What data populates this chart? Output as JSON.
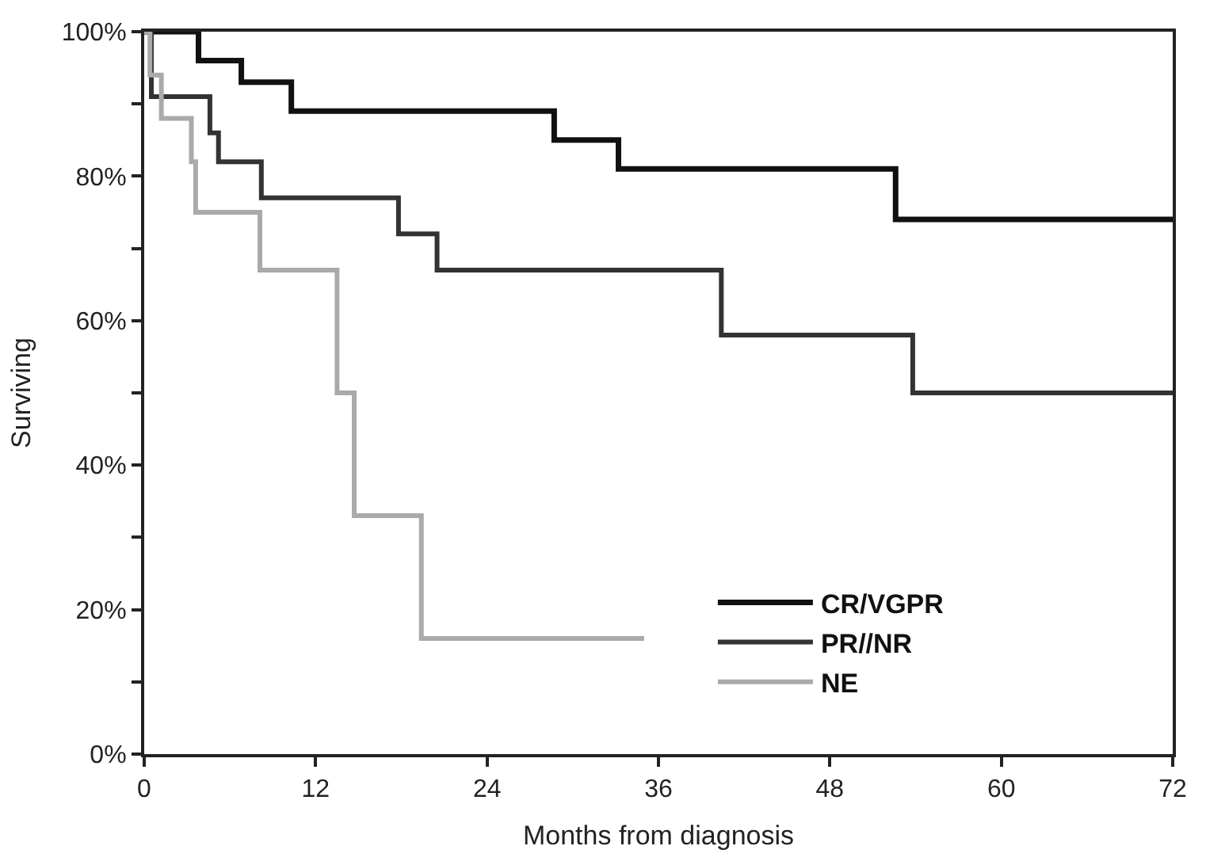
{
  "chart_data": {
    "type": "step",
    "xlabel": "Months from diagnosis",
    "ylabel": "Surviving",
    "xlim": [
      0,
      72
    ],
    "xticks": [
      0,
      12,
      24,
      36,
      48,
      60,
      72
    ],
    "ylim": [
      0,
      100
    ],
    "yticks": [
      {
        "value": 0,
        "label": "0%"
      },
      {
        "value": 10,
        "label": null
      },
      {
        "value": 20,
        "label": "20%"
      },
      {
        "value": 30,
        "label": null
      },
      {
        "value": 40,
        "label": "40%"
      },
      {
        "value": 50,
        "label": null
      },
      {
        "value": 60,
        "label": "60%"
      },
      {
        "value": 70,
        "label": null
      },
      {
        "value": 80,
        "label": "80%"
      },
      {
        "value": 90,
        "label": null
      },
      {
        "value": 100,
        "label": "100%"
      }
    ],
    "legend": "bottom right",
    "marker": "none",
    "line_style": "solid",
    "series": [
      {
        "name": "CR/VGPR",
        "color": "#111111",
        "x": [
          0,
          3.8,
          6.8,
          10.3,
          28.7,
          33.2,
          52.6,
          72
        ],
        "values": [
          100,
          96,
          93,
          89,
          85,
          81,
          74,
          74
        ]
      },
      {
        "name": "PR//NR",
        "color": "#333333",
        "x": [
          0,
          0.5,
          4.6,
          5.2,
          8.2,
          17.8,
          20.5,
          40.4,
          53.8,
          72
        ],
        "values": [
          100,
          91,
          86,
          82,
          77,
          72,
          67,
          58,
          50,
          50
        ]
      },
      {
        "name": "NE",
        "color": "#aaaaaa",
        "x": [
          0,
          0.4,
          1.2,
          3.3,
          3.6,
          8.1,
          13.5,
          14.7,
          19.4,
          35
        ],
        "values": [
          100,
          94,
          88,
          82,
          75,
          67,
          50,
          33,
          16,
          16
        ]
      }
    ]
  }
}
